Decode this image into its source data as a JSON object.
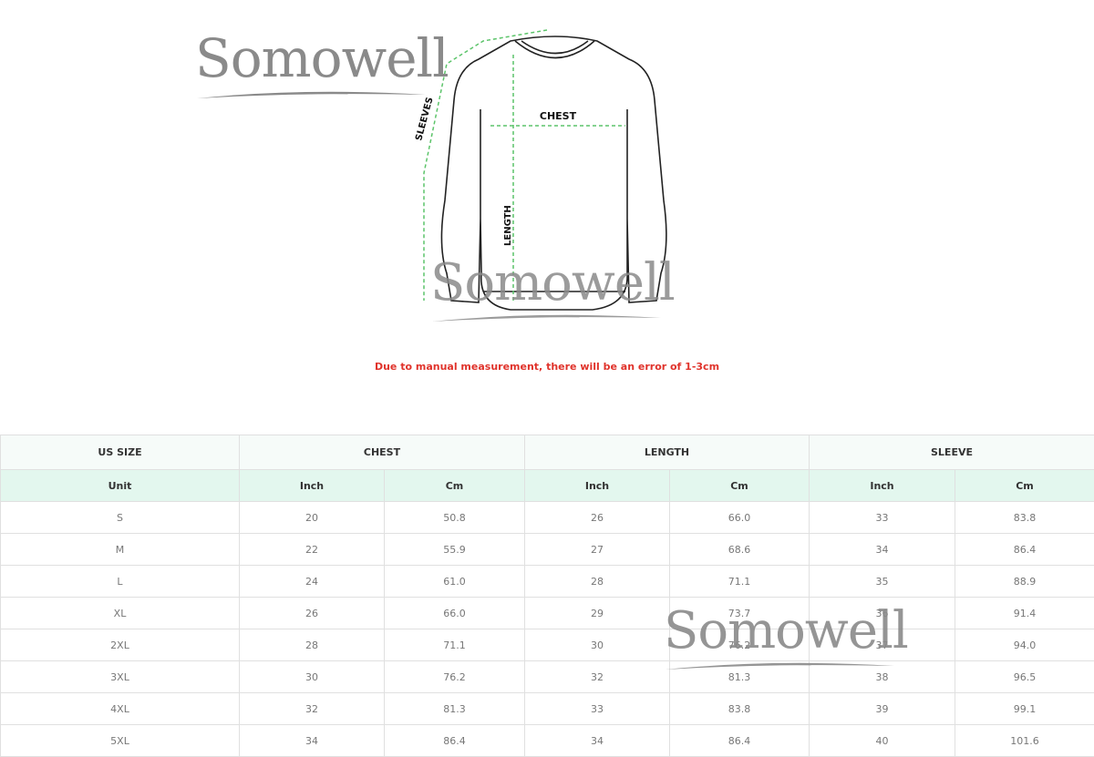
{
  "watermark": "Somowell",
  "diagram": {
    "labels": {
      "chest": "CHEST",
      "length": "LENGTH",
      "sleeves": "SLEEVES"
    },
    "arrow_color": "#5cc46a"
  },
  "note": "Due to manual measurement, there will be an error of 1-3cm",
  "table": {
    "groups": [
      "US SIZE",
      "CHEST",
      "LENGTH",
      "SLEEVE"
    ],
    "units": [
      "Unit",
      "Inch",
      "Cm",
      "Inch",
      "Cm",
      "Inch",
      "Cm"
    ],
    "rows": [
      [
        "S",
        "20",
        "50.8",
        "26",
        "66.0",
        "33",
        "83.8"
      ],
      [
        "M",
        "22",
        "55.9",
        "27",
        "68.6",
        "34",
        "86.4"
      ],
      [
        "L",
        "24",
        "61.0",
        "28",
        "71.1",
        "35",
        "88.9"
      ],
      [
        "XL",
        "26",
        "66.0",
        "29",
        "73.7",
        "36",
        "91.4"
      ],
      [
        "2XL",
        "28",
        "71.1",
        "30",
        "76.2",
        "37",
        "94.0"
      ],
      [
        "3XL",
        "30",
        "76.2",
        "32",
        "81.3",
        "38",
        "96.5"
      ],
      [
        "4XL",
        "32",
        "81.3",
        "33",
        "83.8",
        "39",
        "99.1"
      ],
      [
        "5XL",
        "34",
        "86.4",
        "34",
        "86.4",
        "40",
        "101.6"
      ]
    ]
  }
}
